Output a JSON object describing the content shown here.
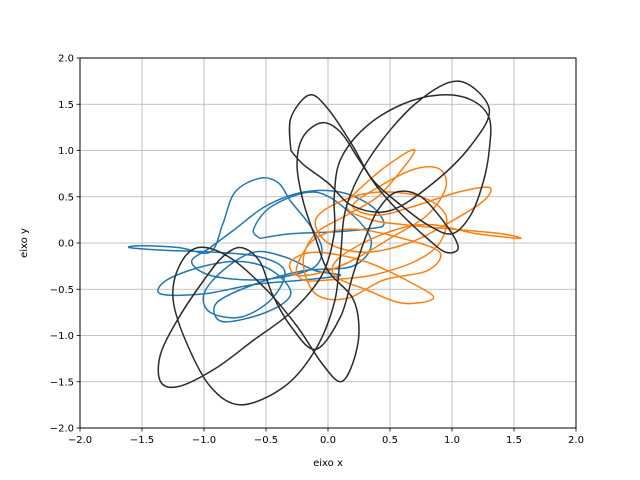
{
  "chart_data": {
    "type": "line",
    "title": "",
    "xlabel": "eixo x",
    "ylabel": "eixo y",
    "xlim": [
      -2.0,
      2.0
    ],
    "ylim": [
      -2.0,
      2.0
    ],
    "xticks": [
      -2.0,
      -1.5,
      -1.0,
      -0.5,
      0.0,
      0.5,
      1.0,
      1.5,
      2.0
    ],
    "yticks": [
      -2.0,
      -1.5,
      -1.0,
      -0.5,
      0.0,
      0.5,
      1.0,
      1.5,
      2.0
    ],
    "xtick_labels": [
      "−2.0",
      "−1.5",
      "−1.0",
      "−0.5",
      "0.0",
      "0.5",
      "1.0",
      "1.5",
      "2.0"
    ],
    "ytick_labels": [
      "−2.0",
      "−1.5",
      "−1.0",
      "−0.5",
      "0.0",
      "0.5",
      "1.0",
      "1.5",
      "2.0"
    ],
    "grid": true,
    "legend": "none",
    "series": [
      {
        "color": "#1f77b4",
        "points": [
          [
            -0.55,
            0.05
          ],
          [
            -0.3,
            0.1
          ],
          [
            0.05,
            0.12
          ],
          [
            0.3,
            0.15
          ],
          [
            0.45,
            0.2
          ],
          [
            0.35,
            0.4
          ],
          [
            0.1,
            0.55
          ],
          [
            -0.2,
            0.55
          ],
          [
            -0.5,
            0.4
          ],
          [
            -0.75,
            0.15
          ],
          [
            -0.95,
            -0.05
          ],
          [
            -1.1,
            -0.2
          ],
          [
            -0.95,
            -0.35
          ],
          [
            -0.6,
            -0.4
          ],
          [
            -0.3,
            -0.35
          ],
          [
            -0.1,
            -0.25
          ],
          [
            -0.05,
            -0.05
          ],
          [
            -0.15,
            0.2
          ],
          [
            -0.3,
            0.45
          ],
          [
            -0.4,
            0.65
          ],
          [
            -0.55,
            0.7
          ],
          [
            -0.75,
            0.55
          ],
          [
            -0.85,
            0.2
          ],
          [
            -0.95,
            -0.1
          ],
          [
            -1.2,
            -0.05
          ],
          [
            -1.5,
            -0.03
          ],
          [
            -1.6,
            -0.05
          ],
          [
            -1.3,
            -0.08
          ],
          [
            -0.9,
            -0.1
          ],
          [
            -0.55,
            -0.15
          ],
          [
            -0.35,
            -0.3
          ],
          [
            -0.45,
            -0.6
          ],
          [
            -0.7,
            -0.8
          ],
          [
            -0.95,
            -0.75
          ],
          [
            -1.0,
            -0.55
          ],
          [
            -0.85,
            -0.3
          ],
          [
            -0.6,
            -0.1
          ],
          [
            -0.35,
            -0.15
          ],
          [
            -0.1,
            -0.3
          ],
          [
            0.1,
            -0.35
          ],
          [
            -0.2,
            -0.4
          ],
          [
            -0.6,
            -0.45
          ],
          [
            -1.0,
            -0.55
          ],
          [
            -1.35,
            -0.55
          ],
          [
            -1.3,
            -0.4
          ],
          [
            -1.0,
            -0.25
          ],
          [
            -0.7,
            -0.2
          ],
          [
            -0.45,
            -0.3
          ],
          [
            -0.3,
            -0.55
          ],
          [
            -0.5,
            -0.75
          ],
          [
            -0.85,
            -0.85
          ],
          [
            -0.9,
            -0.65
          ],
          [
            -0.6,
            -0.45
          ],
          [
            -0.2,
            -0.3
          ],
          [
            0.2,
            -0.25
          ],
          [
            0.35,
            0.0
          ],
          [
            0.2,
            0.3
          ],
          [
            -0.1,
            0.55
          ],
          [
            -0.45,
            0.4
          ],
          [
            -0.6,
            0.15
          ],
          [
            -0.55,
            0.05
          ]
        ]
      },
      {
        "color": "#ff7f0e",
        "points": [
          [
            0.0,
            -0.4
          ],
          [
            0.35,
            -0.35
          ],
          [
            0.7,
            -0.2
          ],
          [
            0.9,
            0.0
          ],
          [
            0.95,
            0.3
          ],
          [
            0.75,
            0.5
          ],
          [
            0.4,
            0.55
          ],
          [
            0.1,
            0.45
          ],
          [
            -0.1,
            0.25
          ],
          [
            0.0,
            0.0
          ],
          [
            0.3,
            -0.1
          ],
          [
            0.65,
            0.0
          ],
          [
            0.95,
            0.2
          ],
          [
            1.25,
            0.45
          ],
          [
            1.3,
            0.6
          ],
          [
            1.05,
            0.55
          ],
          [
            0.7,
            0.4
          ],
          [
            0.4,
            0.3
          ],
          [
            0.2,
            0.4
          ],
          [
            0.4,
            0.6
          ],
          [
            0.7,
            0.8
          ],
          [
            0.9,
            0.8
          ],
          [
            0.95,
            0.6
          ],
          [
            0.8,
            0.3
          ],
          [
            0.5,
            0.05
          ],
          [
            0.25,
            -0.15
          ],
          [
            0.0,
            -0.3
          ],
          [
            -0.25,
            -0.35
          ],
          [
            -0.3,
            -0.2
          ],
          [
            -0.1,
            -0.1
          ],
          [
            0.3,
            -0.2
          ],
          [
            0.7,
            -0.45
          ],
          [
            0.85,
            -0.6
          ],
          [
            0.6,
            -0.65
          ],
          [
            0.3,
            -0.5
          ],
          [
            0.05,
            -0.35
          ],
          [
            0.1,
            -0.15
          ],
          [
            0.45,
            0.1
          ],
          [
            0.8,
            0.2
          ],
          [
            1.2,
            0.1
          ],
          [
            1.55,
            0.05
          ],
          [
            1.4,
            0.1
          ],
          [
            1.0,
            0.15
          ],
          [
            0.6,
            0.2
          ],
          [
            0.35,
            0.25
          ],
          [
            0.15,
            0.4
          ],
          [
            0.35,
            0.7
          ],
          [
            0.6,
            0.95
          ],
          [
            0.7,
            1.0
          ],
          [
            0.6,
            0.8
          ],
          [
            0.4,
            0.5
          ],
          [
            0.15,
            0.3
          ],
          [
            -0.1,
            0.1
          ],
          [
            -0.2,
            -0.2
          ],
          [
            -0.1,
            -0.55
          ],
          [
            0.15,
            -0.6
          ],
          [
            0.45,
            -0.4
          ],
          [
            0.8,
            -0.3
          ],
          [
            0.9,
            -0.1
          ],
          [
            0.6,
            0.05
          ],
          [
            0.2,
            0.15
          ],
          [
            -0.1,
            0.05
          ],
          [
            -0.25,
            -0.25
          ],
          [
            -0.2,
            -0.4
          ],
          [
            0.0,
            -0.4
          ]
        ]
      },
      {
        "color": "#2b2b2b",
        "points": [
          [
            -0.3,
            1.0
          ],
          [
            -0.3,
            1.35
          ],
          [
            -0.15,
            1.6
          ],
          [
            0.0,
            1.45
          ],
          [
            0.2,
            1.05
          ],
          [
            0.35,
            0.7
          ],
          [
            0.55,
            0.45
          ],
          [
            0.8,
            0.2
          ],
          [
            1.0,
            0.1
          ],
          [
            1.15,
            0.3
          ],
          [
            1.25,
            0.65
          ],
          [
            1.3,
            1.0
          ],
          [
            1.3,
            1.35
          ],
          [
            1.15,
            1.55
          ],
          [
            0.9,
            1.6
          ],
          [
            0.6,
            1.5
          ],
          [
            0.3,
            1.25
          ],
          [
            0.1,
            0.9
          ],
          [
            0.05,
            0.5
          ],
          [
            0.05,
            0.1
          ],
          [
            -0.05,
            -0.35
          ],
          [
            -0.3,
            -0.75
          ],
          [
            -0.6,
            -1.05
          ],
          [
            -0.9,
            -1.35
          ],
          [
            -1.2,
            -1.55
          ],
          [
            -1.35,
            -1.5
          ],
          [
            -1.35,
            -1.2
          ],
          [
            -1.2,
            -0.8
          ],
          [
            -1.0,
            -0.4
          ],
          [
            -0.85,
            -0.15
          ],
          [
            -0.7,
            -0.05
          ],
          [
            -0.55,
            -0.2
          ],
          [
            -0.45,
            -0.55
          ],
          [
            -0.3,
            -0.9
          ],
          [
            -0.1,
            -1.15
          ],
          [
            0.1,
            -0.8
          ],
          [
            0.2,
            -0.35
          ],
          [
            0.3,
            0.05
          ],
          [
            0.4,
            0.35
          ],
          [
            0.55,
            0.55
          ],
          [
            0.75,
            0.5
          ],
          [
            0.95,
            0.2
          ],
          [
            1.05,
            -0.05
          ],
          [
            0.95,
            -0.1
          ],
          [
            0.8,
            0.05
          ],
          [
            0.6,
            0.3
          ],
          [
            0.4,
            0.6
          ],
          [
            0.25,
            0.9
          ],
          [
            0.1,
            1.2
          ],
          [
            -0.05,
            1.3
          ],
          [
            -0.2,
            1.15
          ],
          [
            -0.25,
            0.85
          ],
          [
            -0.2,
            0.45
          ],
          [
            -0.1,
            0.05
          ],
          [
            0.0,
            -0.3
          ],
          [
            0.2,
            -0.6
          ],
          [
            0.25,
            -0.95
          ],
          [
            0.2,
            -1.3
          ],
          [
            0.1,
            -1.5
          ],
          [
            -0.05,
            -1.3
          ],
          [
            -0.25,
            -0.9
          ],
          [
            -0.5,
            -0.5
          ],
          [
            -0.8,
            -0.15
          ],
          [
            -1.05,
            -0.05
          ],
          [
            -1.2,
            -0.25
          ],
          [
            -1.25,
            -0.6
          ],
          [
            -1.15,
            -1.05
          ],
          [
            -0.95,
            -1.55
          ],
          [
            -0.7,
            -1.75
          ],
          [
            -0.35,
            -1.55
          ],
          [
            -0.1,
            -1.15
          ],
          [
            0.05,
            -0.65
          ],
          [
            0.1,
            -0.15
          ],
          [
            0.15,
            0.4
          ],
          [
            0.35,
            0.95
          ],
          [
            0.7,
            1.5
          ],
          [
            1.05,
            1.75
          ],
          [
            1.3,
            1.45
          ],
          [
            1.15,
            1.05
          ],
          [
            0.85,
            0.65
          ],
          [
            0.5,
            0.35
          ],
          [
            0.2,
            0.4
          ],
          [
            0.0,
            0.65
          ],
          [
            -0.2,
            0.85
          ],
          [
            -0.3,
            1.0
          ]
        ]
      }
    ]
  }
}
